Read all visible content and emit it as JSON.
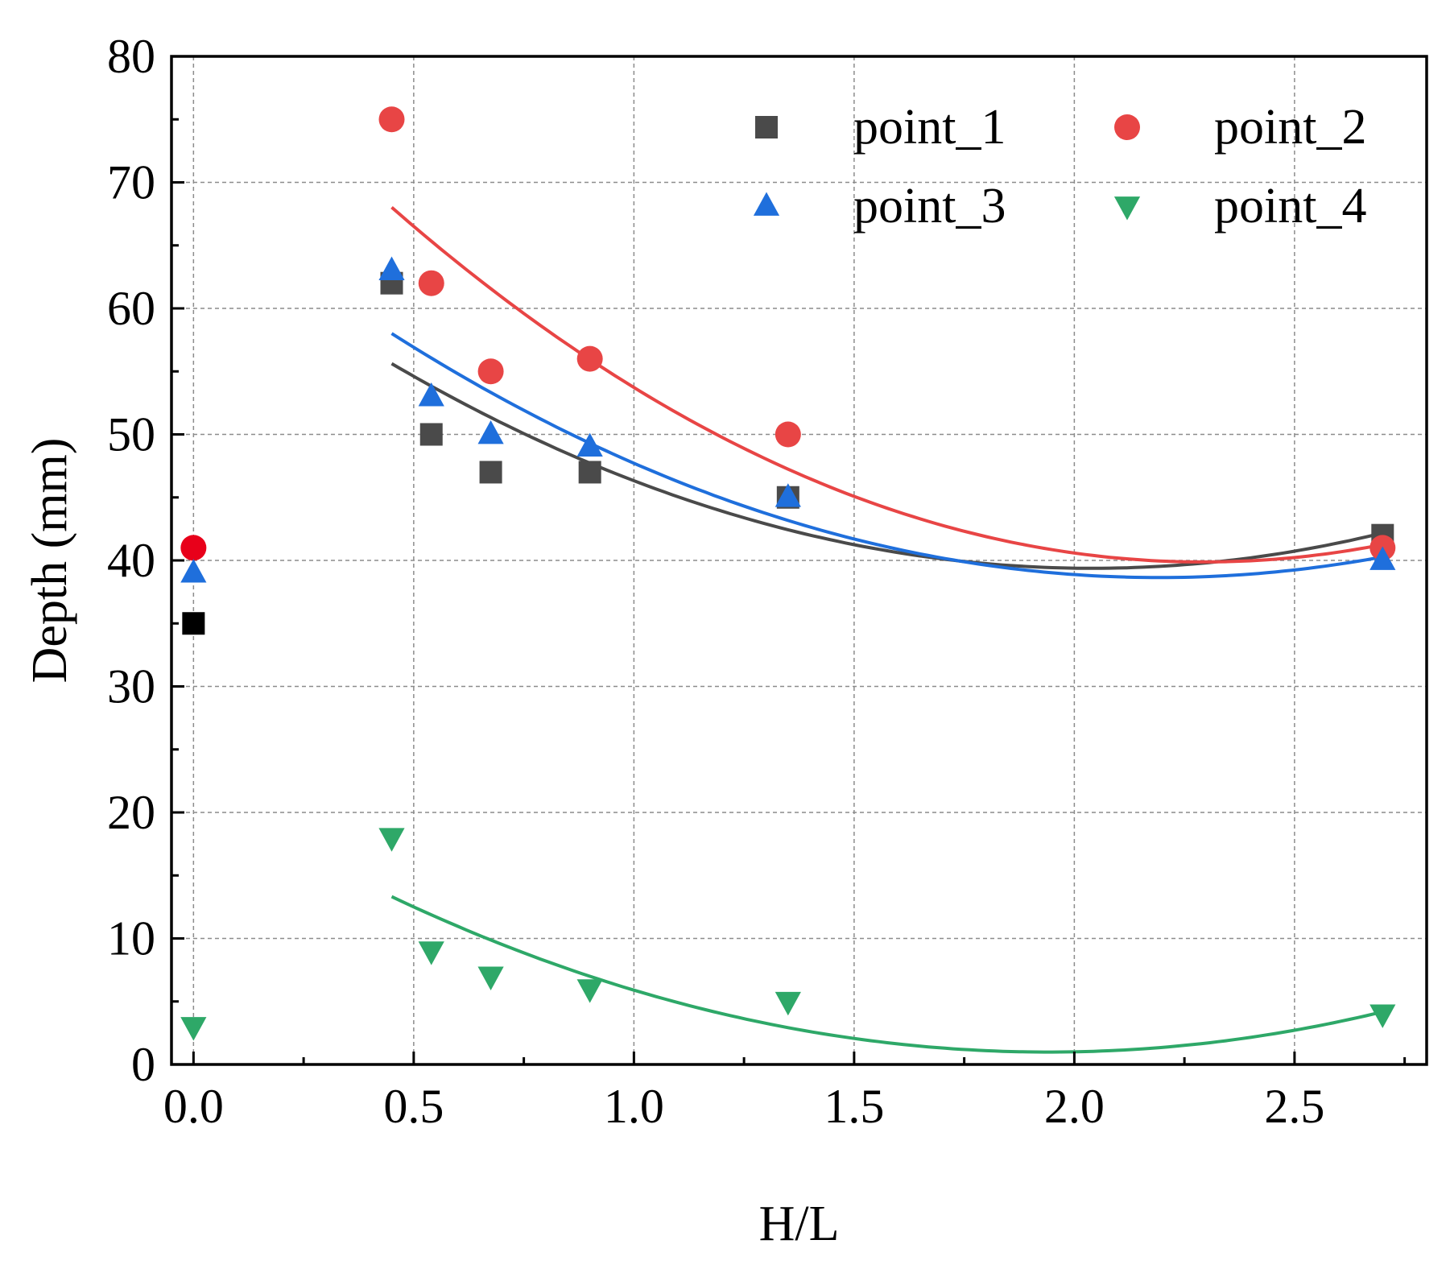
{
  "chart_data": {
    "type": "scatter",
    "title": "",
    "xlabel": "H/L",
    "ylabel": "Depth (mm)",
    "xlim": [
      -0.05,
      2.8
    ],
    "ylim": [
      0,
      80
    ],
    "xticks": [
      0.0,
      0.5,
      1.0,
      1.5,
      2.0,
      2.5
    ],
    "xtick_labels": [
      "0.0",
      "0.5",
      "1.0",
      "1.5",
      "2.0",
      "2.5"
    ],
    "yticks": [
      0,
      10,
      20,
      30,
      40,
      50,
      60,
      70,
      80
    ],
    "ytick_labels": [
      "0",
      "10",
      "20",
      "30",
      "40",
      "50",
      "60",
      "70",
      "80"
    ],
    "grid": true,
    "legend_position": "top-right",
    "series": [
      {
        "name": "point_1",
        "marker": "square",
        "color": "#4a4a4a",
        "x": [
          0.0,
          0.45,
          0.54,
          0.675,
          0.9,
          1.35,
          2.7
        ],
        "y": [
          35,
          62,
          50,
          47,
          47,
          45,
          42
        ],
        "fit": {
          "type": "quadratic",
          "x_range": [
            0.45,
            2.7
          ],
          "points": [
            [
              0.45,
              55.6
            ],
            [
              1.35,
              42.5
            ],
            [
              2.03,
              39.3
            ],
            [
              2.7,
              42.2
            ]
          ]
        }
      },
      {
        "name": "point_2",
        "marker": "circle",
        "color": "#e84545",
        "x": [
          0.0,
          0.45,
          0.54,
          0.675,
          0.9,
          1.35,
          2.7
        ],
        "y": [
          41,
          75,
          62,
          55,
          56,
          50,
          41
        ],
        "fit": {
          "type": "quadratic",
          "x_range": [
            0.45,
            2.7
          ],
          "points": [
            [
              0.45,
              68.0
            ],
            [
              1.35,
              47.3
            ],
            [
              2.25,
              39.8
            ],
            [
              2.7,
              41.3
            ]
          ]
        }
      },
      {
        "name": "point_3",
        "marker": "triangle-up",
        "color": "#1f6fdc",
        "x": [
          0.0,
          0.45,
          0.54,
          0.675,
          0.9,
          1.35,
          2.7
        ],
        "y": [
          39,
          63,
          53,
          50,
          49,
          45,
          40
        ],
        "fit": {
          "type": "quadratic",
          "x_range": [
            0.45,
            2.7
          ],
          "points": [
            [
              0.45,
              58.0
            ],
            [
              1.35,
              43.2
            ],
            [
              2.18,
              38.6
            ],
            [
              2.7,
              40.3
            ]
          ]
        }
      },
      {
        "name": "point_4",
        "marker": "triangle-down",
        "color": "#2ea868",
        "x": [
          0.0,
          0.45,
          0.54,
          0.675,
          0.9,
          1.35,
          2.7
        ],
        "y": [
          3,
          18,
          9,
          7,
          6,
          5,
          4
        ],
        "fit": {
          "type": "quadratic",
          "x_range": [
            0.45,
            2.7
          ],
          "points": [
            [
              0.45,
              13.3
            ],
            [
              1.35,
              3.0
            ],
            [
              1.95,
              0.9
            ],
            [
              2.7,
              4.2
            ]
          ]
        }
      }
    ],
    "first_point_colors": [
      "#000000",
      "#e8001a",
      "#1f6fdc",
      "#2ea868"
    ]
  }
}
